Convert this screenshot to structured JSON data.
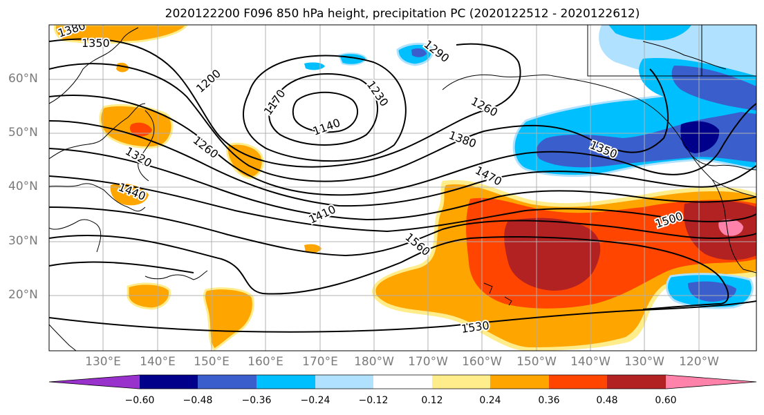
{
  "title": "2020122200 F096 850 hPa height, precipitation PC (2020122512 - 2020122612)",
  "lat_labels": [
    "60°N",
    "50°N",
    "40°N",
    "30°N",
    "20°N"
  ],
  "lon_labels": [
    "130°E",
    "140°E",
    "150°E",
    "160°E",
    "170°E",
    "180°W",
    "170°W",
    "160°W",
    "150°W",
    "140°W",
    "130°W",
    "120°W"
  ],
  "contour_labels": [
    "1380",
    "1350",
    "1290",
    "1200",
    "1170",
    "1140",
    "1230",
    "1260",
    "1320",
    "1260",
    "1380",
    "1350",
    "1440",
    "1470",
    "1410",
    "1500",
    "1560",
    "1530"
  ],
  "colorbar": {
    "colors": [
      "#9932cc",
      "#00008b",
      "#3a5fcd",
      "#00bfff",
      "#b0e2ff",
      "#ffffff",
      "#ffec8b",
      "#ffa500",
      "#ff4500",
      "#b22222",
      "#ff82ab"
    ],
    "tick_labels": [
      "−0.60",
      "−0.48",
      "−0.36",
      "−0.24",
      "−0.12",
      "0.12",
      "0.24",
      "0.36",
      "0.48",
      "0.60"
    ]
  },
  "colors": {
    "land_outline": "#000000",
    "grid": "#b0b0b0",
    "contour": "#000000"
  }
}
